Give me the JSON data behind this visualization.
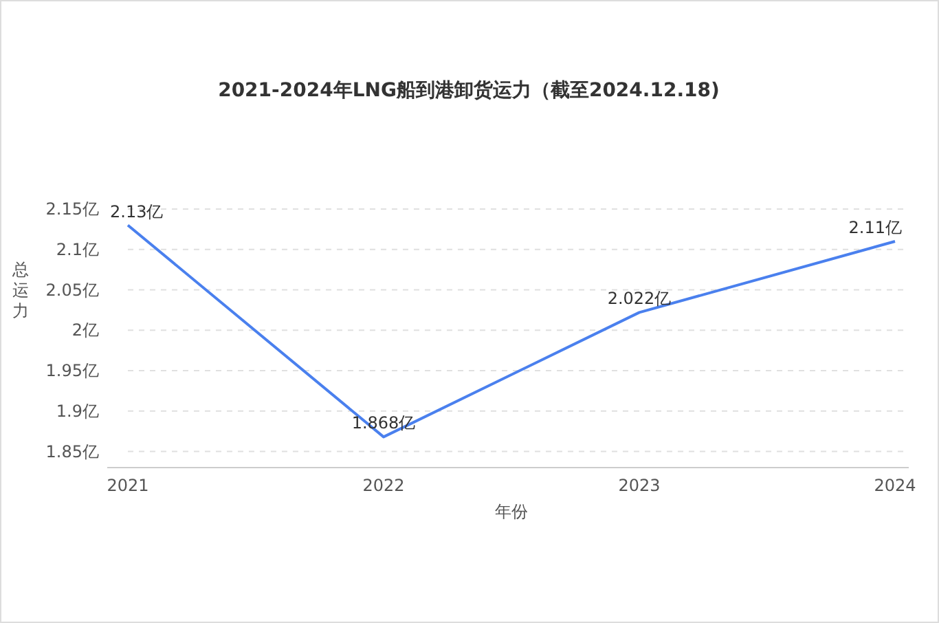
{
  "chart_data": {
    "type": "line",
    "title": "2021-2024年LNG船到港卸货运力（截至2024.12.18)",
    "xlabel": "年份",
    "ylabel": "总运力",
    "categories": [
      "2021",
      "2022",
      "2023",
      "2024"
    ],
    "series": [
      {
        "color": "#4a80ee",
        "values": [
          2.13,
          1.868,
          2.022,
          2.11
        ],
        "value_labels": [
          "2.13亿",
          "1.868亿",
          "2.022亿",
          "2.11亿"
        ]
      }
    ],
    "ylim": [
      1.83,
      2.15
    ],
    "yticks": [
      {
        "value": 1.85,
        "label": "1.85亿"
      },
      {
        "value": 1.9,
        "label": "1.9亿"
      },
      {
        "value": 1.95,
        "label": "1.95亿"
      },
      {
        "value": 2,
        "label": "2亿"
      },
      {
        "value": 2.05,
        "label": "2.05亿"
      },
      {
        "value": 2.1,
        "label": "2.1亿"
      },
      {
        "value": 2.15,
        "label": "2.15亿"
      }
    ],
    "grid": "y"
  }
}
